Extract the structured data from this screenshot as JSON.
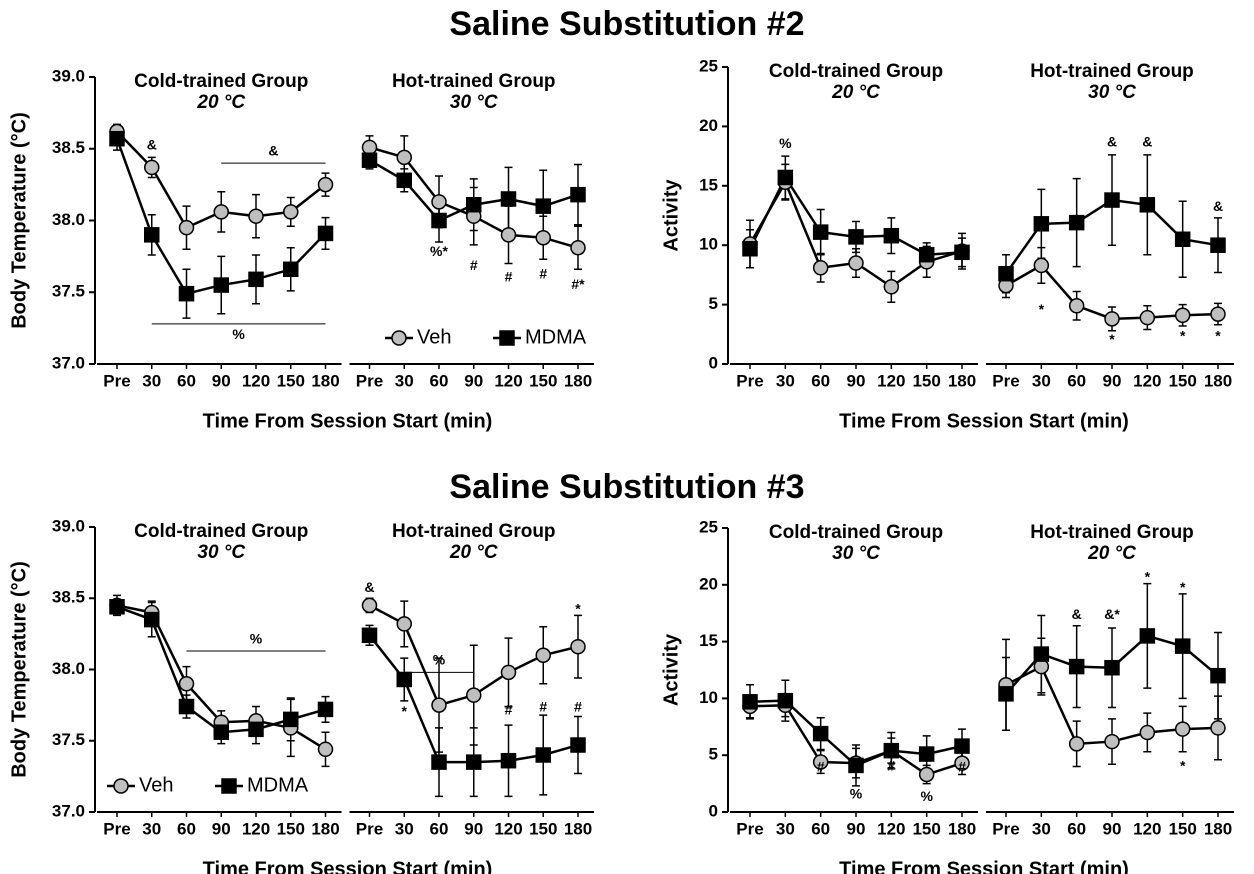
{
  "headings": [
    "Saline Substitution #2",
    "Saline Substitution #3"
  ],
  "series_styles": [
    {
      "name": "Veh",
      "color": "#bfbfbf",
      "marker": "circle"
    },
    {
      "name": "MDMA",
      "color": "#000000",
      "marker": "square"
    }
  ],
  "chart_data": [
    {
      "type": "line",
      "ylabel": "Body Temperature (°C)",
      "xlabel": "Time From Session Start (min)",
      "ylim": [
        37.0,
        39.0
      ],
      "yticks": [
        {
          "value": 37,
          "label": "37.0"
        },
        37.5,
        {
          "value": 38,
          "label": "38.0"
        },
        38.5,
        {
          "value": 39,
          "label": "39.0"
        }
      ],
      "legend": "lower-right",
      "panels": [
        {
          "title": "Cold-trained Group",
          "subtitle": "20 °C",
          "categories": [
            "Pre",
            "30",
            "60",
            "90",
            "120",
            "150",
            "180"
          ],
          "series": [
            {
              "values": [
                38.62,
                38.37,
                37.95,
                38.06,
                38.03,
                38.06,
                38.25
              ],
              "errors": [
                0.05,
                0.07,
                0.15,
                0.14,
                0.15,
                0.1,
                0.08
              ]
            },
            {
              "values": [
                38.57,
                37.9,
                37.49,
                37.55,
                37.59,
                37.66,
                37.91
              ],
              "errors": [
                0.08,
                0.14,
                0.17,
                0.2,
                0.17,
                0.15,
                0.11
              ]
            }
          ],
          "annotations": [
            {
              "text": "&",
              "x": "30",
              "y": 38.52
            }
          ],
          "brackets": [
            {
              "text": "&",
              "from": "90",
              "to": "180",
              "y": 38.4,
              "text_y": 38.48
            },
            {
              "text": "%",
              "from": "30",
              "to": "180",
              "y": 37.28,
              "text_y": 37.2
            }
          ]
        },
        {
          "title": "Hot-trained Group",
          "subtitle": "30 °C",
          "categories": [
            "Pre",
            "30",
            "60",
            "90",
            "120",
            "150",
            "180"
          ],
          "series": [
            {
              "values": [
                38.51,
                38.44,
                38.13,
                38.03,
                37.9,
                37.88,
                37.81
              ],
              "errors": [
                0.08,
                0.15,
                0.18,
                0.2,
                0.2,
                0.15,
                0.15
              ]
            },
            {
              "values": [
                38.42,
                38.28,
                38.0,
                38.11,
                38.15,
                38.1,
                38.18
              ],
              "errors": [
                0.06,
                0.08,
                0.15,
                0.18,
                0.22,
                0.25,
                0.21
              ]
            }
          ],
          "annotations": [
            {
              "text": "%*",
              "x": "60",
              "y": 37.78
            },
            {
              "text": "#",
              "x": "90",
              "y": 37.68
            },
            {
              "text": "#",
              "x": "120",
              "y": 37.6
            },
            {
              "text": "#",
              "x": "150",
              "y": 37.62
            },
            {
              "text": "#*",
              "x": "180",
              "y": 37.55
            }
          ],
          "brackets": []
        }
      ]
    },
    {
      "type": "line",
      "ylabel": "Activity",
      "xlabel": "Time From Session Start (min)",
      "ylim": [
        0,
        25
      ],
      "yticks": [
        0,
        5,
        10,
        15,
        20,
        25
      ],
      "panels": [
        {
          "title": "Cold-trained Group",
          "subtitle": "20 °C",
          "categories": [
            "Pre",
            "30",
            "60",
            "90",
            "120",
            "150",
            "180"
          ],
          "series": [
            {
              "values": [
                10.1,
                15.3,
                8.1,
                8.5,
                6.5,
                8.6,
                9.5
              ],
              "errors": [
                2,
                1.5,
                1.2,
                1.2,
                1.3,
                1.3,
                1.5
              ]
            },
            {
              "values": [
                9.7,
                15.7,
                11.1,
                10.7,
                10.8,
                9.2,
                9.4
              ],
              "errors": [
                1.6,
                1.8,
                1.9,
                1.3,
                1.5,
                1,
                1.2
              ]
            }
          ],
          "annotations": [
            {
              "text": "%",
              "x": "30",
              "y": 18.5
            }
          ],
          "brackets": []
        },
        {
          "title": "Hot-trained Group",
          "subtitle": "30 °C",
          "categories": [
            "Pre",
            "30",
            "60",
            "90",
            "120",
            "150",
            "180"
          ],
          "series": [
            {
              "values": [
                6.6,
                8.3,
                4.9,
                3.8,
                3.9,
                4.1,
                4.2
              ],
              "errors": [
                1,
                1.5,
                1.2,
                1,
                1,
                0.9,
                0.9
              ]
            },
            {
              "values": [
                7.6,
                11.8,
                11.9,
                13.8,
                13.4,
                10.5,
                10.0
              ],
              "errors": [
                1.6,
                2.9,
                3.7,
                3.8,
                4.2,
                3.2,
                2.3
              ]
            }
          ],
          "annotations": [
            {
              "text": "*",
              "x": "30",
              "y": 4.5
            },
            {
              "text": "&",
              "x": "90",
              "y": 18.6
            },
            {
              "text": "&",
              "x": "120",
              "y": 18.6
            },
            {
              "text": "*",
              "x": "90",
              "y": 2
            },
            {
              "text": "*",
              "x": "150",
              "y": 2.3
            },
            {
              "text": "*",
              "x": "180",
              "y": 2.3
            },
            {
              "text": "&",
              "x": "180",
              "y": 13.2
            }
          ],
          "brackets": []
        }
      ]
    },
    {
      "type": "line",
      "ylabel": "Body Temperature (°C)",
      "xlabel": "Time From Session Start (min)",
      "ylim": [
        37.0,
        39.0
      ],
      "yticks": [
        {
          "value": 37,
          "label": "37.0"
        },
        37.5,
        {
          "value": 38,
          "label": "38.0"
        },
        38.5,
        {
          "value": 39,
          "label": "39.0"
        }
      ],
      "legend": "lower-left",
      "panels": [
        {
          "title": "Cold-trained Group",
          "subtitle": "30 °C",
          "categories": [
            "Pre",
            "30",
            "60",
            "90",
            "120",
            "150",
            "180"
          ],
          "series": [
            {
              "values": [
                38.45,
                38.4,
                37.9,
                37.63,
                37.64,
                37.59,
                37.44
              ],
              "errors": [
                0.07,
                0.08,
                0.12,
                0.08,
                0.1,
                0.2,
                0.12
              ]
            },
            {
              "values": [
                38.44,
                38.35,
                37.74,
                37.56,
                37.58,
                37.65,
                37.72
              ],
              "errors": [
                0.05,
                0.12,
                0.08,
                0.08,
                0.1,
                0.15,
                0.09
              ]
            }
          ],
          "annotations": [],
          "brackets": [
            {
              "text": "%",
              "from": "60",
              "to": "180",
              "y": 38.13,
              "text_y": 38.21
            }
          ]
        },
        {
          "title": "Hot-trained Group",
          "subtitle": "20 °C",
          "categories": [
            "Pre",
            "30",
            "60",
            "90",
            "120",
            "150",
            "180"
          ],
          "series": [
            {
              "values": [
                38.45,
                38.32,
                37.75,
                37.82,
                37.98,
                38.1,
                38.16
              ],
              "errors": [
                0.05,
                0.16,
                0.33,
                0.35,
                0.24,
                0.2,
                0.22
              ]
            },
            {
              "values": [
                38.24,
                37.93,
                37.35,
                37.35,
                37.36,
                37.4,
                37.47
              ],
              "errors": [
                0.07,
                0.15,
                0.24,
                0.24,
                0.25,
                0.28,
                0.2
              ]
            }
          ],
          "annotations": [
            {
              "text": "&",
              "x": "Pre",
              "y": 38.57
            },
            {
              "text": "*",
              "x": "30",
              "y": 37.7
            },
            {
              "text": "*",
              "x": "180",
              "y": 38.42
            },
            {
              "text": "#",
              "x": "120",
              "y": 37.71
            },
            {
              "text": "#",
              "x": "150",
              "y": 37.73
            },
            {
              "text": "#",
              "x": "180",
              "y": 37.73
            }
          ],
          "brackets": [
            {
              "text": "%",
              "from": "30",
              "to": "90",
              "y": 37.98,
              "text_y": 38.06
            }
          ]
        }
      ]
    },
    {
      "type": "line",
      "ylabel": "Activity",
      "xlabel": "Time From Session Start (min)",
      "ylim": [
        0,
        25
      ],
      "yticks": [
        0,
        5,
        10,
        15,
        20,
        25
      ],
      "panels": [
        {
          "title": "Cold-trained Group",
          "subtitle": "30 °C",
          "categories": [
            "Pre",
            "30",
            "60",
            "90",
            "120",
            "150",
            "180"
          ],
          "series": [
            {
              "values": [
                9.3,
                9.4,
                4.4,
                4.3,
                5.4,
                3.3,
                4.3
              ],
              "errors": [
                1,
                1,
                1,
                1.3,
                1.1,
                0.8,
                1
              ]
            },
            {
              "values": [
                9.7,
                9.8,
                6.9,
                4.1,
                5.4,
                5.1,
                5.8
              ],
              "errors": [
                1.5,
                1.8,
                1.4,
                1.8,
                1.6,
                1.6,
                1.5
              ]
            }
          ],
          "annotations": [
            {
              "text": "#",
              "x": "60",
              "y": 3.9
            },
            {
              "text": "%",
              "x": "90",
              "y": 1.5
            },
            {
              "text": "#",
              "x": "120",
              "y": 4
            },
            {
              "text": "%",
              "x": "150",
              "y": 1.3
            },
            {
              "text": "#",
              "x": "180",
              "y": 3.9
            }
          ],
          "brackets": []
        },
        {
          "title": "Hot-trained Group",
          "subtitle": "20 °C",
          "categories": [
            "Pre",
            "30",
            "60",
            "90",
            "120",
            "150",
            "180"
          ],
          "series": [
            {
              "values": [
                11.2,
                12.8,
                6.0,
                6.2,
                7.0,
                7.3,
                7.4
              ],
              "errors": [
                4,
                2.5,
                2,
                2,
                1.7,
                2,
                2.8
              ]
            },
            {
              "values": [
                10.4,
                13.9,
                12.8,
                12.7,
                15.5,
                14.6,
                12.0
              ],
              "errors": [
                3.2,
                3.4,
                3.6,
                3.5,
                4.6,
                4.6,
                3.8
              ]
            }
          ],
          "annotations": [
            {
              "text": "&",
              "x": "60",
              "y": 17.3
            },
            {
              "text": "&*",
              "x": "90",
              "y": 17.3
            },
            {
              "text": "*",
              "x": "120",
              "y": 20.6
            },
            {
              "text": "*",
              "x": "150",
              "y": 19.7
            },
            {
              "text": "*",
              "x": "150",
              "y": 4
            }
          ],
          "brackets": []
        }
      ]
    }
  ]
}
